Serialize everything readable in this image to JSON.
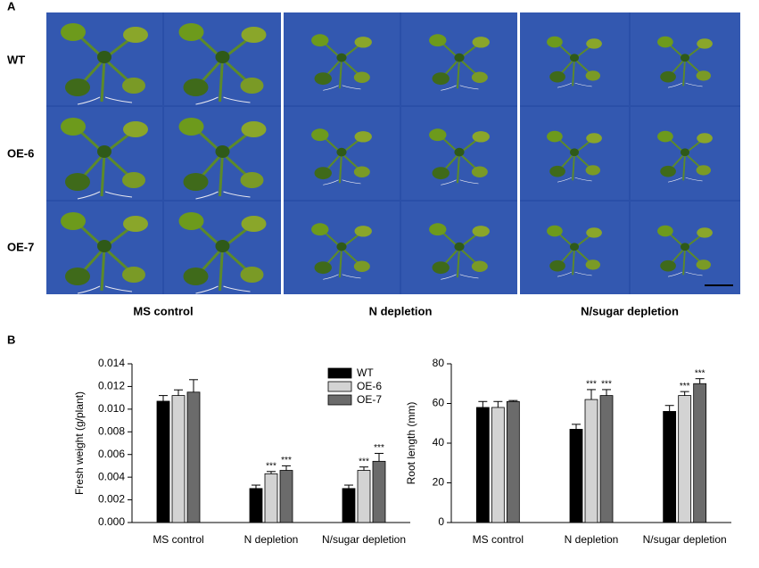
{
  "panel_a": {
    "label": "A",
    "rows": [
      "WT",
      "OE-6",
      "OE-7"
    ],
    "columns": [
      "MS control",
      "N depletion",
      "N/sugar depletion"
    ]
  },
  "panel_b": {
    "label": "B"
  },
  "chart_data": [
    {
      "type": "bar",
      "y_label": "Fresh weight (g/plant)",
      "categories": [
        "MS control",
        "N depletion",
        "N/sugar depletion"
      ],
      "ylim": [
        0,
        0.014
      ],
      "yticks": [
        {
          "value": 0,
          "label": "0.000"
        },
        {
          "value": 0.002,
          "label": "0.002"
        },
        {
          "value": 0.004,
          "label": "0.004"
        },
        {
          "value": 0.006,
          "label": "0.006"
        },
        {
          "value": 0.008,
          "label": "0.008"
        },
        {
          "value": 0.01,
          "label": "0.010"
        },
        {
          "value": 0.012,
          "label": "0.012"
        },
        {
          "value": 0.014,
          "label": "0.014"
        }
      ],
      "legend": "top-right",
      "series": [
        {
          "name": "WT",
          "color": "#000000",
          "values": [
            0.0107,
            0.003,
            0.003
          ],
          "errors": [
            0.0005,
            0.0003,
            0.0003
          ],
          "annotations": [
            null,
            null,
            null
          ]
        },
        {
          "name": "OE-6",
          "color": "#d3d3d3",
          "values": [
            0.0112,
            0.0043,
            0.0046
          ],
          "errors": [
            0.0005,
            0.0002,
            0.0003
          ],
          "annotations": [
            null,
            "***",
            "***"
          ]
        },
        {
          "name": "OE-7",
          "color": "#6b6b6b",
          "values": [
            0.0115,
            0.0046,
            0.0054
          ],
          "errors": [
            0.0011,
            0.0004,
            0.0007
          ],
          "annotations": [
            null,
            "***",
            "***"
          ]
        }
      ]
    },
    {
      "type": "bar",
      "y_label": "Root length (mm)",
      "categories": [
        "MS control",
        "N depletion",
        "N/sugar depletion"
      ],
      "ylim": [
        0,
        80
      ],
      "yticks": [
        0,
        20,
        40,
        60,
        80
      ],
      "series": [
        {
          "color": "#000000",
          "values": [
            58,
            47,
            56
          ],
          "errors": [
            3,
            2.5,
            3
          ],
          "annotations": [
            null,
            null,
            null
          ]
        },
        {
          "color": "#d3d3d3",
          "values": [
            58,
            62,
            64
          ],
          "errors": [
            3,
            5,
            2
          ],
          "annotations": [
            null,
            "***",
            "***"
          ]
        },
        {
          "color": "#6b6b6b",
          "values": [
            61,
            64,
            70
          ],
          "errors": [
            0.5,
            3,
            2.5
          ],
          "annotations": [
            null,
            "***",
            "***"
          ]
        }
      ]
    }
  ]
}
